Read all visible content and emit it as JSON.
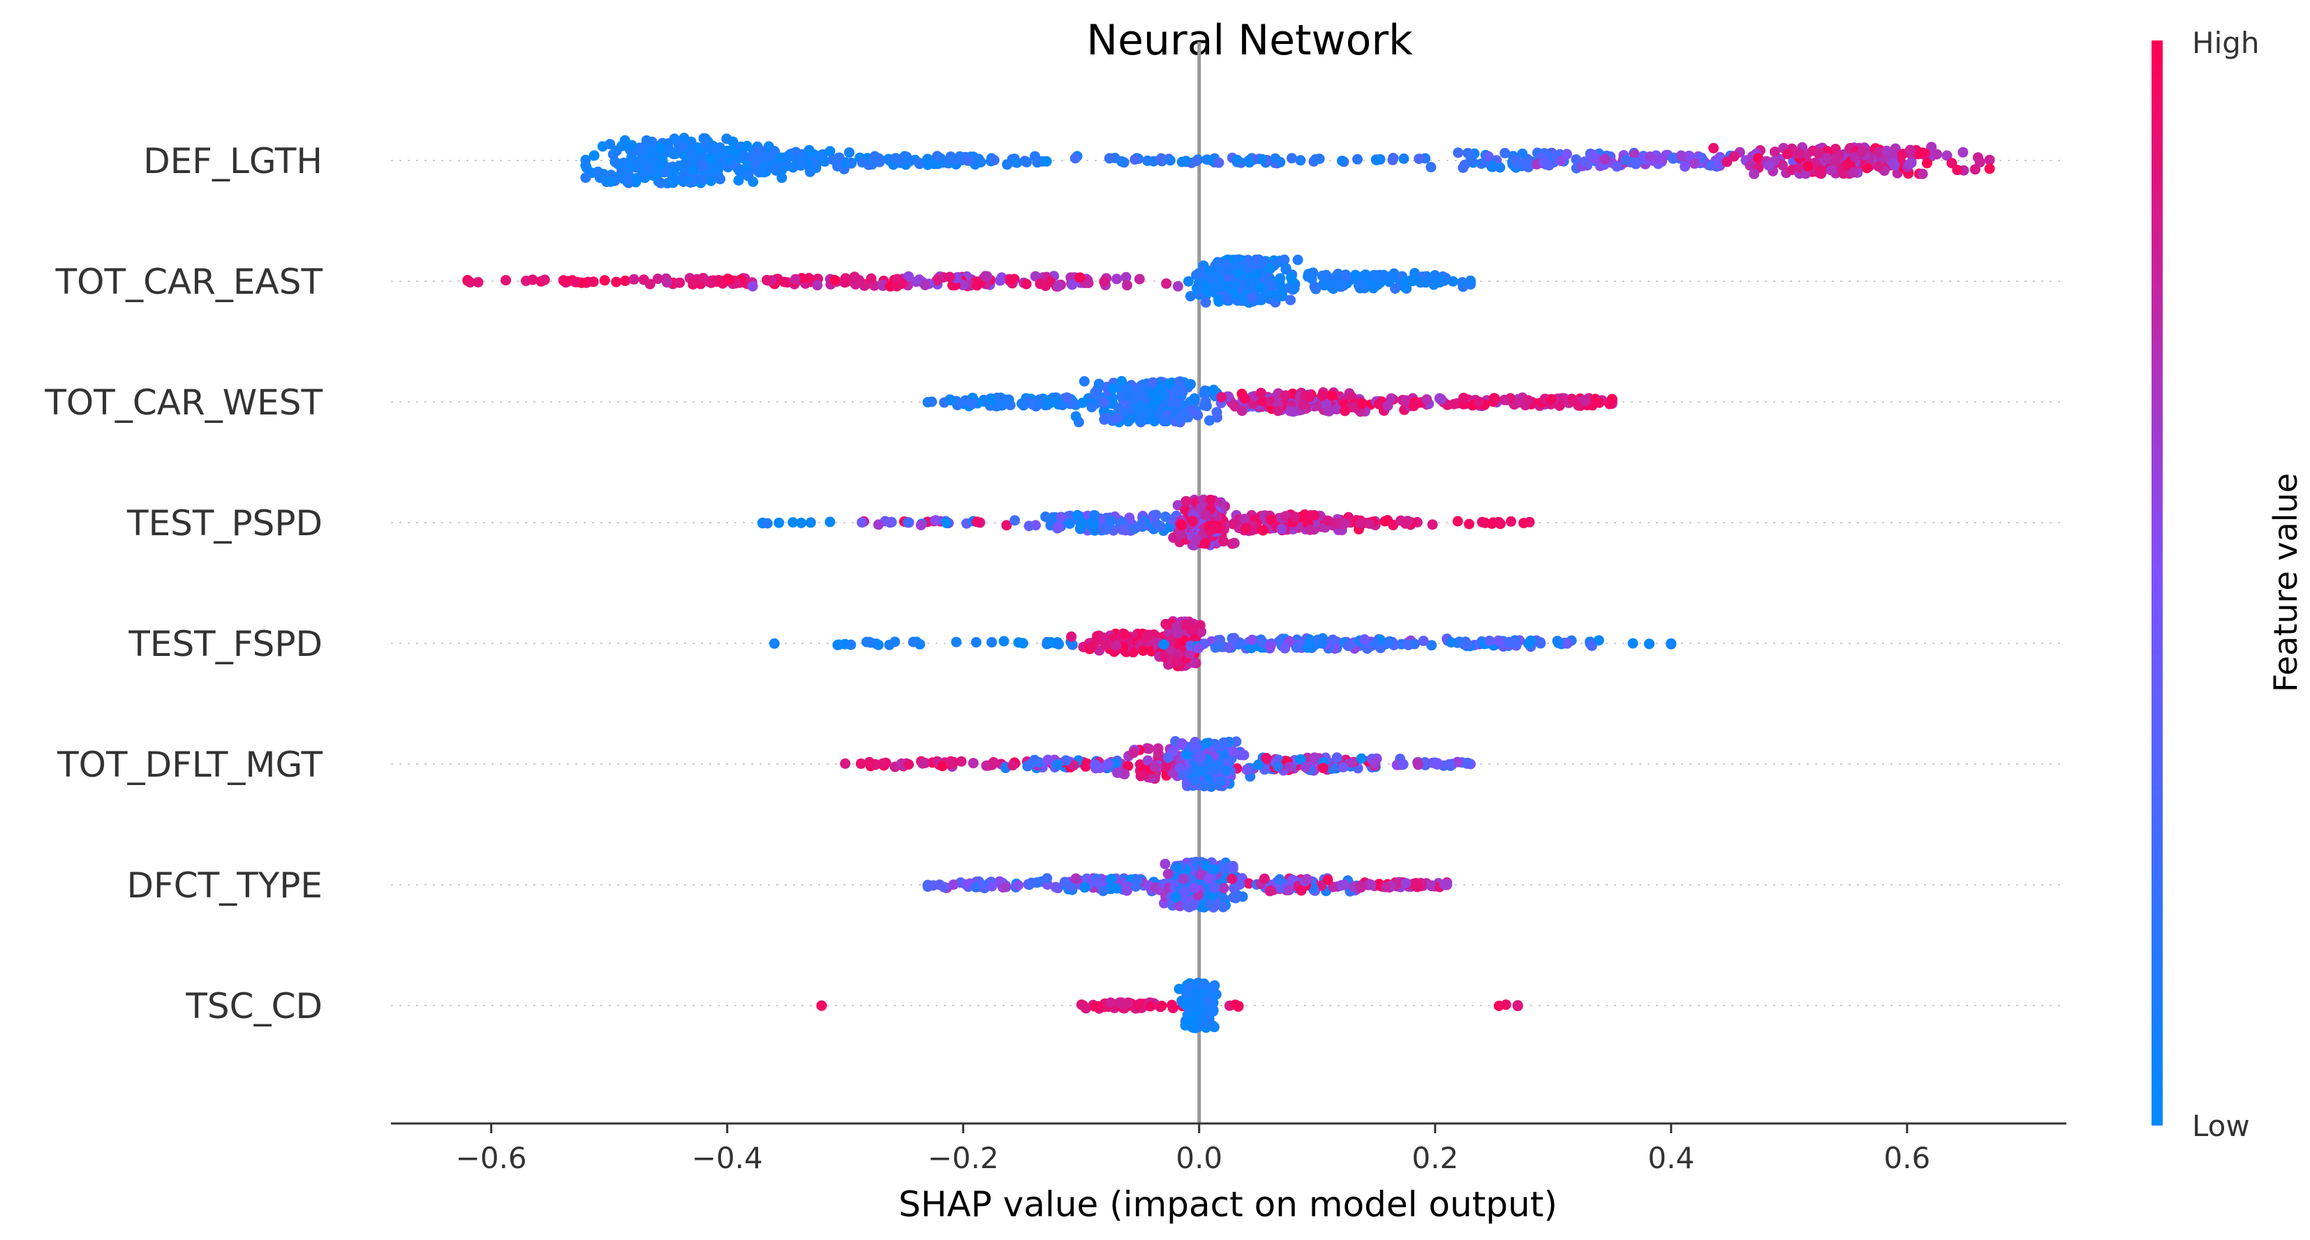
{
  "chart_data": {
    "type": "scatter",
    "subtype": "shap-beeswarm",
    "title": "Neural Network",
    "xlabel": "SHAP value (impact on model output)",
    "ylabel": "",
    "xlim": [
      -0.685,
      0.735
    ],
    "xticks": [
      {
        "value": -0.6,
        "label": "−0.6"
      },
      {
        "value": -0.4,
        "label": "−0.4"
      },
      {
        "value": -0.2,
        "label": "−0.2"
      },
      {
        "value": 0.0,
        "label": "0.0"
      },
      {
        "value": 0.2,
        "label": "0.2"
      },
      {
        "value": 0.4,
        "label": "0.4"
      },
      {
        "value": 0.6,
        "label": "0.6"
      }
    ],
    "features": [
      {
        "name": "DEF_LGTH",
        "min": -0.52,
        "max": 0.67,
        "dense": [
          {
            "c": -0.44,
            "w": 0.08,
            "n": 220,
            "spread": 0.42,
            "fv": [
              0.0,
              0.15
            ]
          },
          {
            "c": -0.36,
            "w": 0.06,
            "n": 90,
            "spread": 0.22,
            "fv": [
              0.0,
              0.18
            ]
          },
          {
            "c": -0.24,
            "w": 0.1,
            "n": 80,
            "spread": 0.08,
            "fv": [
              0.0,
              0.2
            ]
          },
          {
            "c": 0.02,
            "w": 0.2,
            "n": 70,
            "spread": 0.05,
            "fv": [
              0.05,
              0.35
            ]
          },
          {
            "c": 0.27,
            "w": 0.08,
            "n": 60,
            "spread": 0.15,
            "fv": [
              0.05,
              0.4
            ]
          },
          {
            "c": 0.4,
            "w": 0.1,
            "n": 90,
            "spread": 0.12,
            "fv": [
              0.2,
              0.7
            ]
          },
          {
            "c": 0.55,
            "w": 0.1,
            "n": 190,
            "spread": 0.25,
            "fv": [
              0.6,
              1.0
            ]
          }
        ]
      },
      {
        "name": "TOT_CAR_EAST",
        "min": -0.62,
        "max": 0.23,
        "dense": [
          {
            "c": -0.55,
            "w": 0.08,
            "n": 20,
            "spread": 0.03,
            "fv": [
              0.85,
              1.0
            ]
          },
          {
            "c": -0.38,
            "w": 0.12,
            "n": 70,
            "spread": 0.06,
            "fv": [
              0.75,
              1.0
            ]
          },
          {
            "c": -0.18,
            "w": 0.14,
            "n": 110,
            "spread": 0.1,
            "fv": [
              0.55,
              1.0
            ]
          },
          {
            "c": 0.04,
            "w": 0.04,
            "n": 210,
            "spread": 0.4,
            "fv": [
              0.0,
              0.25
            ]
          },
          {
            "c": 0.13,
            "w": 0.08,
            "n": 100,
            "spread": 0.15,
            "fv": [
              0.0,
              0.2
            ]
          },
          {
            "c": 0.2,
            "w": 0.03,
            "n": 12,
            "spread": 0.03,
            "fv": [
              0.0,
              0.15
            ]
          }
        ]
      },
      {
        "name": "TOT_CAR_WEST",
        "min": -0.23,
        "max": 0.35,
        "dense": [
          {
            "c": -0.15,
            "w": 0.08,
            "n": 90,
            "spread": 0.08,
            "fv": [
              0.0,
              0.2
            ]
          },
          {
            "c": -0.04,
            "w": 0.05,
            "n": 230,
            "spread": 0.38,
            "fv": [
              0.0,
              0.3
            ]
          },
          {
            "c": 0.05,
            "w": 0.04,
            "n": 60,
            "spread": 0.1,
            "fv": [
              0.3,
              0.85
            ]
          },
          {
            "c": 0.1,
            "w": 0.06,
            "n": 110,
            "spread": 0.18,
            "fv": [
              0.6,
              1.0
            ]
          },
          {
            "c": 0.21,
            "w": 0.07,
            "n": 60,
            "spread": 0.08,
            "fv": [
              0.6,
              1.0
            ]
          },
          {
            "c": 0.31,
            "w": 0.05,
            "n": 60,
            "spread": 0.07,
            "fv": [
              0.75,
              1.0
            ]
          }
        ]
      },
      {
        "name": "TEST_PSPD",
        "min": -0.37,
        "max": 0.28,
        "dense": [
          {
            "c": -0.33,
            "w": 0.05,
            "n": 8,
            "spread": 0.02,
            "fv": [
              0.0,
              0.15
            ]
          },
          {
            "c": -0.22,
            "w": 0.06,
            "n": 25,
            "spread": 0.05,
            "fv": [
              0.0,
              1.0
            ]
          },
          {
            "c": -0.06,
            "w": 0.08,
            "n": 110,
            "spread": 0.15,
            "fv": [
              0.0,
              0.5
            ]
          },
          {
            "c": 0.005,
            "w": 0.02,
            "n": 170,
            "spread": 0.42,
            "fv": [
              0.5,
              1.0
            ]
          },
          {
            "c": 0.07,
            "w": 0.06,
            "n": 120,
            "spread": 0.15,
            "fv": [
              0.6,
              1.0
            ]
          },
          {
            "c": 0.15,
            "w": 0.04,
            "n": 30,
            "spread": 0.05,
            "fv": [
              0.75,
              1.0
            ]
          },
          {
            "c": 0.25,
            "w": 0.03,
            "n": 10,
            "spread": 0.03,
            "fv": [
              0.85,
              1.0
            ]
          }
        ]
      },
      {
        "name": "TEST_FSPD",
        "min": -0.36,
        "max": 0.4,
        "dense": [
          {
            "c": -0.27,
            "w": 0.08,
            "n": 15,
            "spread": 0.03,
            "fv": [
              0.0,
              0.15
            ]
          },
          {
            "c": -0.13,
            "w": 0.06,
            "n": 15,
            "spread": 0.04,
            "fv": [
              0.0,
              0.2
            ]
          },
          {
            "c": -0.05,
            "w": 0.05,
            "n": 110,
            "spread": 0.18,
            "fv": [
              0.75,
              1.0
            ]
          },
          {
            "c": -0.015,
            "w": 0.015,
            "n": 160,
            "spread": 0.42,
            "fv": [
              0.7,
              1.0
            ]
          },
          {
            "c": 0.08,
            "w": 0.1,
            "n": 110,
            "spread": 0.1,
            "fv": [
              0.0,
              0.6
            ]
          },
          {
            "c": 0.26,
            "w": 0.07,
            "n": 55,
            "spread": 0.06,
            "fv": [
              0.0,
              0.5
            ]
          },
          {
            "c": 0.38,
            "w": 0.03,
            "n": 4,
            "spread": 0.02,
            "fv": [
              0.0,
              0.15
            ]
          }
        ]
      },
      {
        "name": "TOT_DFLT_MGT",
        "min": -0.3,
        "max": 0.23,
        "dense": [
          {
            "c": -0.22,
            "w": 0.08,
            "n": 40,
            "spread": 0.05,
            "fv": [
              0.7,
              1.0
            ]
          },
          {
            "c": -0.1,
            "w": 0.06,
            "n": 60,
            "spread": 0.08,
            "fv": [
              0.0,
              1.0
            ]
          },
          {
            "c": -0.02,
            "w": 0.04,
            "n": 110,
            "spread": 0.3,
            "fv": [
              0.55,
              1.0
            ]
          },
          {
            "c": 0.01,
            "w": 0.025,
            "n": 170,
            "spread": 0.42,
            "fv": [
              0.0,
              0.55
            ]
          },
          {
            "c": 0.09,
            "w": 0.06,
            "n": 90,
            "spread": 0.12,
            "fv": [
              0.0,
              1.0
            ]
          },
          {
            "c": 0.19,
            "w": 0.04,
            "n": 25,
            "spread": 0.04,
            "fv": [
              0.2,
              0.8
            ]
          }
        ]
      },
      {
        "name": "DFCT_TYPE",
        "min": -0.23,
        "max": 0.21,
        "dense": [
          {
            "c": -0.17,
            "w": 0.06,
            "n": 45,
            "spread": 0.06,
            "fv": [
              0.0,
              0.65
            ]
          },
          {
            "c": -0.07,
            "w": 0.05,
            "n": 80,
            "spread": 0.12,
            "fv": [
              0.0,
              0.7
            ]
          },
          {
            "c": 0.0,
            "w": 0.025,
            "n": 250,
            "spread": 0.42,
            "fv": [
              0.0,
              0.7
            ]
          },
          {
            "c": 0.08,
            "w": 0.05,
            "n": 80,
            "spread": 0.12,
            "fv": [
              0.1,
              1.0
            ]
          },
          {
            "c": 0.17,
            "w": 0.05,
            "n": 50,
            "spread": 0.05,
            "fv": [
              0.6,
              1.0
            ]
          }
        ]
      },
      {
        "name": "TSC_CD",
        "min": -0.32,
        "max": 0.27,
        "dense": [
          {
            "c": -0.32,
            "w": 0.003,
            "n": 1,
            "spread": 0.01,
            "fv": [
              0.9,
              1.0
            ]
          },
          {
            "c": -0.06,
            "w": 0.04,
            "n": 60,
            "spread": 0.06,
            "fv": [
              0.8,
              1.0
            ]
          },
          {
            "c": 0.0,
            "w": 0.012,
            "n": 170,
            "spread": 0.42,
            "fv": [
              0.0,
              0.15
            ]
          },
          {
            "c": 0.03,
            "w": 0.005,
            "n": 4,
            "spread": 0.02,
            "fv": [
              0.85,
              1.0
            ]
          },
          {
            "c": 0.26,
            "w": 0.01,
            "n": 3,
            "spread": 0.02,
            "fv": [
              0.85,
              1.0
            ]
          }
        ]
      }
    ],
    "colorbar": {
      "title": "Feature value",
      "high_label": "High",
      "low_label": "Low",
      "low_color": "#008afb",
      "mid_color": "#7c52ff",
      "high_color": "#ff0052"
    },
    "grid": false,
    "zero_line_color": "#999999"
  }
}
